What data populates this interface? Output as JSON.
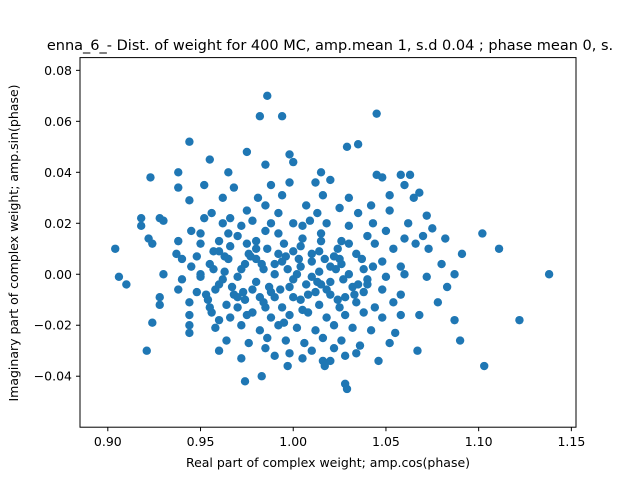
{
  "chart_data": {
    "type": "scatter",
    "title": "enna_6_- Dist. of weight for 400 MC, amp.mean 1, s.d 0.04 ; phase mean 0, s.",
    "xlabel": "Real part of complex weight; amp.cos(phase)",
    "ylabel": "Imaginary part of complex weight; amp.sin(phase)",
    "xlim": [
      0.885,
      0.1525
    ],
    "ylim": [
      -0.06,
      0.085
    ],
    "xticks": [
      0.9,
      0.95,
      1.0,
      1.05,
      1.1,
      1.15
    ],
    "xtick_labels": [
      "0.90",
      "0.95",
      "1.00",
      "1.05",
      "1.10",
      "1.15"
    ],
    "yticks": [
      -0.04,
      -0.02,
      0.0,
      0.02,
      0.04,
      0.06,
      0.08
    ],
    "ytick_labels": [
      "−0.04",
      "−0.02",
      "0.00",
      "0.02",
      "0.04",
      "0.06",
      "0.08"
    ],
    "grid": false,
    "legend": "none",
    "marker_color": "#1f77b4",
    "points": [
      [
        0.986,
        0.07
      ],
      [
        0.982,
        0.062
      ],
      [
        0.994,
        0.062
      ],
      [
        1.045,
        0.063
      ],
      [
        0.944,
        0.052
      ],
      [
        1.029,
        0.05
      ],
      [
        1.035,
        0.051
      ],
      [
        0.975,
        0.048
      ],
      [
        0.998,
        0.047
      ],
      [
        0.955,
        0.045
      ],
      [
        0.985,
        0.043
      ],
      [
        1.0,
        0.044
      ],
      [
        0.938,
        0.04
      ],
      [
        0.965,
        0.04
      ],
      [
        1.015,
        0.04
      ],
      [
        1.045,
        0.039
      ],
      [
        1.058,
        0.039
      ],
      [
        1.063,
        0.039
      ],
      [
        0.952,
        0.035
      ],
      [
        0.968,
        0.034
      ],
      [
        0.988,
        0.035
      ],
      [
        0.998,
        0.036
      ],
      [
        1.012,
        0.036
      ],
      [
        1.02,
        0.037
      ],
      [
        1.048,
        0.038
      ],
      [
        0.923,
        0.038
      ],
      [
        0.938,
        0.034
      ],
      [
        0.944,
        0.029
      ],
      [
        0.962,
        0.03
      ],
      [
        0.981,
        0.03
      ],
      [
        0.994,
        0.031
      ],
      [
        1.016,
        0.031
      ],
      [
        1.03,
        0.03
      ],
      [
        1.052,
        0.031
      ],
      [
        1.065,
        0.03
      ],
      [
        1.068,
        0.032
      ],
      [
        1.06,
        0.035
      ],
      [
        0.975,
        0.025
      ],
      [
        0.985,
        0.027
      ],
      [
        0.992,
        0.024
      ],
      [
        1.007,
        0.027
      ],
      [
        1.013,
        0.024
      ],
      [
        1.025,
        0.026
      ],
      [
        1.035,
        0.024
      ],
      [
        1.042,
        0.027
      ],
      [
        0.956,
        0.024
      ],
      [
        0.966,
        0.022
      ],
      [
        0.918,
        0.022
      ],
      [
        0.918,
        0.019
      ],
      [
        0.928,
        0.022
      ],
      [
        0.93,
        0.021
      ],
      [
        0.945,
        0.017
      ],
      [
        0.952,
        0.022
      ],
      [
        0.962,
        0.02
      ],
      [
        0.972,
        0.019
      ],
      [
        0.978,
        0.021
      ],
      [
        0.988,
        0.02
      ],
      [
        1.0,
        0.02
      ],
      [
        1.009,
        0.021
      ],
      [
        1.018,
        0.02
      ],
      [
        1.03,
        0.019
      ],
      [
        1.043,
        0.02
      ],
      [
        1.052,
        0.025
      ],
      [
        1.062,
        0.02
      ],
      [
        1.072,
        0.023
      ],
      [
        1.075,
        0.018
      ],
      [
        0.922,
        0.014
      ],
      [
        0.938,
        0.013
      ],
      [
        0.95,
        0.016
      ],
      [
        0.96,
        0.013
      ],
      [
        0.97,
        0.015
      ],
      [
        0.98,
        0.013
      ],
      [
        0.992,
        0.016
      ],
      [
        1.005,
        0.014
      ],
      [
        1.015,
        0.016
      ],
      [
        1.026,
        0.013
      ],
      [
        1.04,
        0.015
      ],
      [
        1.05,
        0.017
      ],
      [
        1.06,
        0.014
      ],
      [
        1.07,
        0.015
      ],
      [
        1.082,
        0.014
      ],
      [
        0.904,
        0.01
      ],
      [
        0.924,
        0.012
      ],
      [
        0.937,
        0.008
      ],
      [
        0.948,
        0.007
      ],
      [
        0.957,
        0.009
      ],
      [
        0.966,
        0.011
      ],
      [
        0.976,
        0.008
      ],
      [
        0.986,
        0.01
      ],
      [
        0.996,
        0.007
      ],
      [
        1.004,
        0.011
      ],
      [
        1.014,
        0.009
      ],
      [
        1.024,
        0.01
      ],
      [
        1.034,
        0.008
      ],
      [
        1.044,
        0.012
      ],
      [
        1.054,
        0.01
      ],
      [
        1.066,
        0.012
      ],
      [
        1.073,
        0.01
      ],
      [
        1.091,
        0.008
      ],
      [
        1.102,
        0.016
      ],
      [
        1.111,
        0.01
      ],
      [
        0.945,
        0.003
      ],
      [
        0.955,
        0.004
      ],
      [
        0.963,
        0.001
      ],
      [
        0.974,
        0.004
      ],
      [
        0.984,
        0.002
      ],
      [
        0.994,
        0.005
      ],
      [
        1.004,
        0.003
      ],
      [
        1.014,
        0.001
      ],
      [
        1.026,
        0.004
      ],
      [
        1.038,
        0.002
      ],
      [
        1.048,
        0.005
      ],
      [
        1.058,
        0.003
      ],
      [
        1.08,
        0.004
      ],
      [
        0.906,
        -0.001
      ],
      [
        0.91,
        -0.004
      ],
      [
        0.93,
        0.0
      ],
      [
        0.94,
        -0.002
      ],
      [
        0.95,
        -0.001
      ],
      [
        0.96,
        -0.004
      ],
      [
        0.97,
        -0.001
      ],
      [
        0.98,
        -0.003
      ],
      [
        0.99,
        0.0
      ],
      [
        1.0,
        -0.002
      ],
      [
        1.01,
        -0.001
      ],
      [
        1.02,
        -0.003
      ],
      [
        1.03,
        0.0
      ],
      [
        1.04,
        -0.002
      ],
      [
        1.05,
        -0.001
      ],
      [
        1.06,
        0.0
      ],
      [
        1.072,
        -0.001
      ],
      [
        1.087,
        0.0
      ],
      [
        1.138,
        0.0
      ],
      [
        0.938,
        -0.006
      ],
      [
        0.948,
        -0.007
      ],
      [
        0.958,
        -0.006
      ],
      [
        0.968,
        -0.008
      ],
      [
        0.978,
        -0.006
      ],
      [
        0.988,
        -0.007
      ],
      [
        0.998,
        -0.005
      ],
      [
        1.008,
        -0.008
      ],
      [
        1.018,
        -0.006
      ],
      [
        1.028,
        -0.009
      ],
      [
        1.038,
        -0.007
      ],
      [
        1.048,
        -0.006
      ],
      [
        1.058,
        -0.008
      ],
      [
        1.083,
        -0.005
      ],
      [
        0.928,
        -0.009
      ],
      [
        0.944,
        -0.011
      ],
      [
        0.954,
        -0.01
      ],
      [
        0.964,
        -0.012
      ],
      [
        0.974,
        -0.01
      ],
      [
        0.984,
        -0.011
      ],
      [
        0.994,
        -0.013
      ],
      [
        1.004,
        -0.01
      ],
      [
        1.014,
        -0.012
      ],
      [
        1.024,
        -0.01
      ],
      [
        1.034,
        -0.011
      ],
      [
        1.044,
        -0.013
      ],
      [
        1.054,
        -0.011
      ],
      [
        1.078,
        -0.011
      ],
      [
        0.928,
        -0.012
      ],
      [
        0.944,
        -0.016
      ],
      [
        0.956,
        -0.015
      ],
      [
        0.966,
        -0.017
      ],
      [
        0.978,
        -0.015
      ],
      [
        0.988,
        -0.017
      ],
      [
        0.998,
        -0.016
      ],
      [
        1.008,
        -0.015
      ],
      [
        1.018,
        -0.017
      ],
      [
        1.028,
        -0.016
      ],
      [
        1.038,
        -0.015
      ],
      [
        1.048,
        -0.017
      ],
      [
        1.058,
        -0.016
      ],
      [
        1.068,
        -0.016
      ],
      [
        1.087,
        -0.018
      ],
      [
        1.122,
        -0.018
      ],
      [
        0.924,
        -0.019
      ],
      [
        0.944,
        -0.02
      ],
      [
        0.958,
        -0.021
      ],
      [
        0.972,
        -0.02
      ],
      [
        0.982,
        -0.022
      ],
      [
        0.992,
        -0.02
      ],
      [
        1.002,
        -0.021
      ],
      [
        1.012,
        -0.022
      ],
      [
        1.022,
        -0.02
      ],
      [
        1.032,
        -0.021
      ],
      [
        1.042,
        -0.022
      ],
      [
        1.055,
        -0.023
      ],
      [
        0.944,
        -0.023
      ],
      [
        0.964,
        -0.026
      ],
      [
        0.976,
        -0.027
      ],
      [
        0.986,
        -0.025
      ],
      [
        0.996,
        -0.026
      ],
      [
        1.006,
        -0.027
      ],
      [
        1.016,
        -0.025
      ],
      [
        1.026,
        -0.026
      ],
      [
        1.036,
        -0.028
      ],
      [
        1.052,
        -0.027
      ],
      [
        1.09,
        -0.026
      ],
      [
        0.921,
        -0.03
      ],
      [
        0.96,
        -0.03
      ],
      [
        0.985,
        -0.029
      ],
      [
        0.998,
        -0.031
      ],
      [
        1.01,
        -0.03
      ],
      [
        1.022,
        -0.029
      ],
      [
        1.034,
        -0.031
      ],
      [
        1.067,
        -0.03
      ],
      [
        0.972,
        -0.033
      ],
      [
        0.99,
        -0.032
      ],
      [
        1.005,
        -0.033
      ],
      [
        1.016,
        -0.034
      ],
      [
        1.028,
        -0.032
      ],
      [
        1.046,
        -0.034
      ],
      [
        0.997,
        -0.036
      ],
      [
        1.017,
        -0.036
      ],
      [
        1.02,
        -0.034
      ],
      [
        0.974,
        -0.042
      ],
      [
        0.983,
        -0.04
      ],
      [
        1.028,
        -0.043
      ],
      [
        1.029,
        -0.045
      ],
      [
        1.103,
        -0.036
      ],
      [
        0.96,
        -0.018
      ],
      [
        0.97,
        -0.013
      ],
      [
        0.98,
        0.006
      ],
      [
        0.99,
        -0.009
      ],
      [
        1.0,
        0.009
      ],
      [
        1.01,
        0.005
      ],
      [
        1.02,
        -0.008
      ],
      [
        0.95,
        0.0
      ],
      [
        0.965,
        0.006
      ],
      [
        0.975,
        -0.016
      ],
      [
        0.985,
        0.017
      ],
      [
        0.995,
        -0.019
      ],
      [
        1.005,
        0.019
      ],
      [
        1.015,
        -0.004
      ],
      [
        1.025,
        0.006
      ],
      [
        1.035,
        -0.004
      ],
      [
        0.955,
        -0.013
      ],
      [
        0.965,
        0.016
      ],
      [
        0.975,
        0.012
      ],
      [
        0.985,
        -0.013
      ],
      [
        0.995,
        0.012
      ],
      [
        1.005,
        -0.014
      ],
      [
        1.015,
        0.013
      ],
      [
        1.025,
        -0.013
      ],
      [
        0.96,
        0.009
      ],
      [
        0.97,
        -0.009
      ],
      [
        0.98,
        0.01
      ],
      [
        0.99,
        0.004
      ],
      [
        1.0,
        -0.009
      ],
      [
        1.01,
        0.008
      ],
      [
        1.02,
        0.003
      ],
      [
        1.03,
        0.012
      ],
      [
        1.04,
        -0.004
      ],
      [
        0.95,
        0.012
      ],
      [
        0.962,
        -0.002
      ],
      [
        0.972,
        0.002
      ],
      [
        0.982,
        -0.009
      ],
      [
        0.992,
        0.008
      ],
      [
        1.002,
        0.0
      ],
      [
        1.012,
        -0.007
      ],
      [
        1.022,
        0.007
      ],
      [
        1.032,
        -0.005
      ],
      [
        0.957,
        0.002
      ],
      [
        0.967,
        -0.005
      ],
      [
        0.977,
        0.007
      ],
      [
        0.987,
        -0.005
      ],
      [
        0.997,
        0.002
      ],
      [
        1.007,
        -0.004
      ],
      [
        1.017,
        0.006
      ],
      [
        1.027,
        -0.002
      ],
      [
        1.037,
        0.006
      ],
      [
        0.94,
        0.006
      ],
      [
        0.953,
        -0.008
      ],
      [
        0.963,
        0.007
      ],
      [
        0.973,
        -0.007
      ],
      [
        0.983,
        0.004
      ],
      [
        0.993,
        -0.006
      ],
      [
        1.003,
        0.006
      ],
      [
        1.013,
        -0.003
      ],
      [
        1.023,
        0.002
      ],
      [
        1.033,
        -0.008
      ],
      [
        1.043,
        0.003
      ]
    ]
  }
}
